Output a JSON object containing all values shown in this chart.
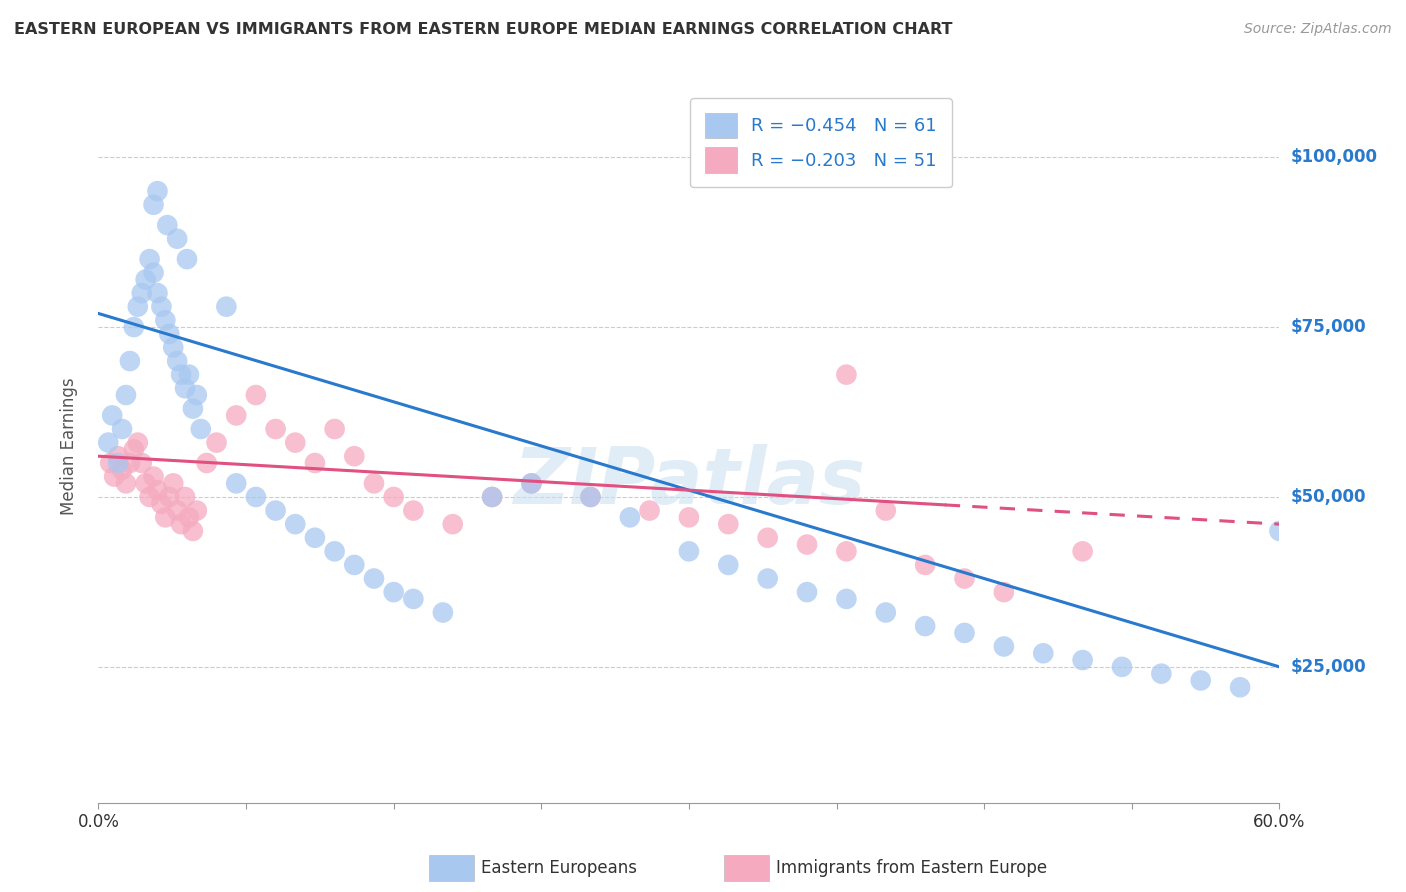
{
  "title": "EASTERN EUROPEAN VS IMMIGRANTS FROM EASTERN EUROPE MEDIAN EARNINGS CORRELATION CHART",
  "source": "Source: ZipAtlas.com",
  "ylabel": "Median Earnings",
  "y_ticks": [
    25000,
    50000,
    75000,
    100000
  ],
  "y_tick_labels": [
    "$25,000",
    "$50,000",
    "$75,000",
    "$100,000"
  ],
  "xlim": [
    0.0,
    0.6
  ],
  "ylim": [
    5000,
    110000
  ],
  "blue_color": "#A8C8F0",
  "pink_color": "#F5AABF",
  "blue_line_color": "#2979CC",
  "pink_line_color": "#E05080",
  "legend_R1": "R = −0.454",
  "legend_N1": "N = 61",
  "legend_R2": "R = −0.203",
  "legend_N2": "N = 51",
  "watermark": "ZIPatlas",
  "blue_scatter_x": [
    0.005,
    0.007,
    0.01,
    0.012,
    0.014,
    0.016,
    0.018,
    0.02,
    0.022,
    0.024,
    0.026,
    0.028,
    0.03,
    0.032,
    0.034,
    0.036,
    0.038,
    0.04,
    0.042,
    0.044,
    0.046,
    0.048,
    0.05,
    0.052,
    0.065,
    0.07,
    0.08,
    0.09,
    0.1,
    0.11,
    0.12,
    0.13,
    0.14,
    0.15,
    0.16,
    0.175,
    0.2,
    0.22,
    0.25,
    0.27,
    0.3,
    0.32,
    0.34,
    0.36,
    0.38,
    0.4,
    0.42,
    0.44,
    0.46,
    0.48,
    0.5,
    0.52,
    0.54,
    0.56,
    0.58,
    0.6,
    0.028,
    0.03,
    0.035,
    0.04,
    0.045
  ],
  "blue_scatter_y": [
    58000,
    62000,
    55000,
    60000,
    65000,
    70000,
    75000,
    78000,
    80000,
    82000,
    85000,
    83000,
    80000,
    78000,
    76000,
    74000,
    72000,
    70000,
    68000,
    66000,
    68000,
    63000,
    65000,
    60000,
    78000,
    52000,
    50000,
    48000,
    46000,
    44000,
    42000,
    40000,
    38000,
    36000,
    35000,
    33000,
    50000,
    52000,
    50000,
    47000,
    42000,
    40000,
    38000,
    36000,
    35000,
    33000,
    31000,
    30000,
    28000,
    27000,
    26000,
    25000,
    24000,
    23000,
    22000,
    45000,
    93000,
    95000,
    90000,
    88000,
    85000
  ],
  "pink_scatter_x": [
    0.006,
    0.008,
    0.01,
    0.012,
    0.014,
    0.016,
    0.018,
    0.02,
    0.022,
    0.024,
    0.026,
    0.028,
    0.03,
    0.032,
    0.034,
    0.036,
    0.038,
    0.04,
    0.042,
    0.044,
    0.046,
    0.048,
    0.05,
    0.055,
    0.06,
    0.07,
    0.08,
    0.09,
    0.1,
    0.11,
    0.12,
    0.13,
    0.14,
    0.15,
    0.16,
    0.18,
    0.2,
    0.22,
    0.25,
    0.28,
    0.3,
    0.32,
    0.34,
    0.36,
    0.38,
    0.4,
    0.42,
    0.44,
    0.46,
    0.5,
    0.38
  ],
  "pink_scatter_y": [
    55000,
    53000,
    56000,
    54000,
    52000,
    55000,
    57000,
    58000,
    55000,
    52000,
    50000,
    53000,
    51000,
    49000,
    47000,
    50000,
    52000,
    48000,
    46000,
    50000,
    47000,
    45000,
    48000,
    55000,
    58000,
    62000,
    65000,
    60000,
    58000,
    55000,
    60000,
    56000,
    52000,
    50000,
    48000,
    46000,
    50000,
    52000,
    50000,
    48000,
    47000,
    46000,
    44000,
    43000,
    42000,
    48000,
    40000,
    38000,
    36000,
    42000,
    68000
  ],
  "blue_line_x": [
    0.0,
    0.6
  ],
  "blue_line_y": [
    77000,
    25000
  ],
  "pink_line_x": [
    0.0,
    0.6
  ],
  "pink_line_y": [
    56000,
    46000
  ],
  "pink_line_solid_end": 0.43,
  "label_eastern_europeans": "Eastern Europeans",
  "label_immigrants": "Immigrants from Eastern Europe"
}
